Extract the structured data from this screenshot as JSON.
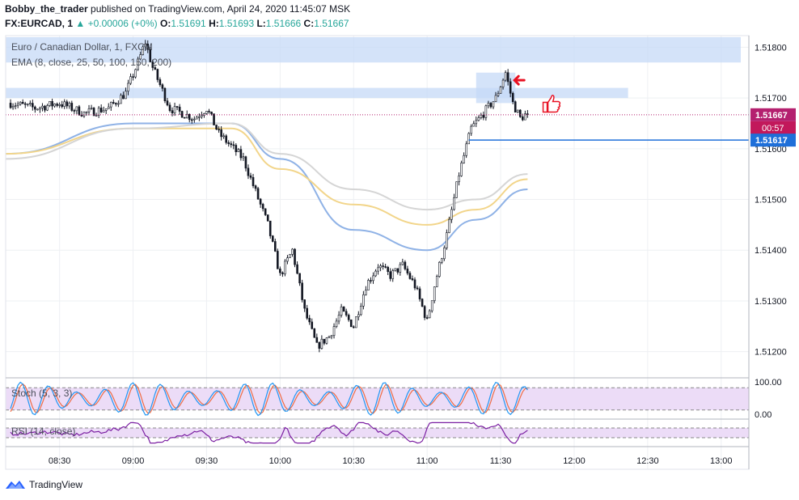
{
  "header": {
    "author": "Bobby_the_trader",
    "published": "published on TradingView.com, April 24, 2020 11:45:07 MSK",
    "symbol": "FX:EURCAD, 1",
    "change": "▲ +0.00006 (+0%)",
    "o_label": "O:",
    "o": "1.51691",
    "h_label": "H:",
    "h": "1.51693",
    "l_label": "L:",
    "l": "1.51666",
    "c_label": "C:",
    "c": "1.51667"
  },
  "legend": {
    "title": "Euro / Canadian Dollar, 1, FXCM",
    "ema": "EMA (8, close, 25, 50, 100, 150, 200)",
    "stoch": "Stoch (5, 3, 3)",
    "rsi": "RSI (14, close)"
  },
  "price_badges": {
    "last": "1.51667",
    "countdown": "00:57",
    "level": "1.51617"
  },
  "osc_scale": [
    "100.00",
    "0.00"
  ],
  "brand": "TradingView",
  "colors": {
    "up": "#26a69a",
    "badge_last": "#b4206f",
    "badge_countdown": "#c2185b",
    "level_line": "#1e6fd9",
    "zone": "#c5d9f7",
    "ema_blue": "#8fb2e6",
    "ema_yellow": "#f2d58a",
    "ema_gray": "#d5d5d5",
    "stoch_k": "#2196f3",
    "stoch_d": "#ef6c45",
    "rsi": "#7b1fa2",
    "osc_bg": "#ecdcf7"
  },
  "chart_data": {
    "type": "candlestick",
    "title": "Euro / Canadian Dollar, 1, FXCM",
    "ylim": [
      1.5115,
      1.5183
    ],
    "yticks": [
      "1.51800",
      "1.51700",
      "1.51600",
      "1.51500",
      "1.51400",
      "1.51300",
      "1.51200"
    ],
    "xticks": [
      "08:30",
      "09:00",
      "09:30",
      "10:00",
      "10:30",
      "11:00",
      "11:30",
      "12:00",
      "12:30",
      "13:00"
    ],
    "price_path": [
      [
        "08:10",
        1.5169
      ],
      [
        "08:20",
        1.5168
      ],
      [
        "08:30",
        1.5169
      ],
      [
        "08:40",
        1.5167
      ],
      [
        "08:50",
        1.5168
      ],
      [
        "08:57",
        1.5171
      ],
      [
        "09:02",
        1.5177
      ],
      [
        "09:05",
        1.5181
      ],
      [
        "09:08",
        1.5176
      ],
      [
        "09:15",
        1.5168
      ],
      [
        "09:25",
        1.5166
      ],
      [
        "09:30",
        1.5168
      ],
      [
        "09:35",
        1.5163
      ],
      [
        "09:45",
        1.5158
      ],
      [
        "09:55",
        1.5145
      ],
      [
        "10:00",
        1.5135
      ],
      [
        "10:05",
        1.514
      ],
      [
        "10:10",
        1.5128
      ],
      [
        "10:15",
        1.5121
      ],
      [
        "10:20",
        1.5123
      ],
      [
        "10:25",
        1.5128
      ],
      [
        "10:30",
        1.5125
      ],
      [
        "10:35",
        1.5133
      ],
      [
        "10:40",
        1.5137
      ],
      [
        "10:45",
        1.5135
      ],
      [
        "10:50",
        1.5137
      ],
      [
        "10:55",
        1.5133
      ],
      [
        "11:00",
        1.5126
      ],
      [
        "11:03",
        1.5133
      ],
      [
        "11:08",
        1.5143
      ],
      [
        "11:13",
        1.5155
      ],
      [
        "11:18",
        1.5164
      ],
      [
        "11:23",
        1.5167
      ],
      [
        "11:28",
        1.517
      ],
      [
        "11:32",
        1.5175
      ],
      [
        "11:35",
        1.5169
      ],
      [
        "11:38",
        1.5166
      ],
      [
        "11:41",
        1.5167
      ]
    ],
    "ema_series": [
      {
        "values": [
          [
            "08:08",
            1.5159
          ],
          [
            "09:00",
            1.5165
          ],
          [
            "09:40",
            1.5165
          ],
          [
            "10:00",
            1.5158
          ],
          [
            "10:30",
            1.5144
          ],
          [
            "11:00",
            1.514
          ],
          [
            "11:20",
            1.5146
          ],
          [
            "11:41",
            1.5152
          ]
        ]
      },
      {
        "values": [
          [
            "08:08",
            1.5159
          ],
          [
            "09:00",
            1.5164
          ],
          [
            "09:40",
            1.5164
          ],
          [
            "10:00",
            1.5156
          ],
          [
            "10:30",
            1.5149
          ],
          [
            "11:00",
            1.5145
          ],
          [
            "11:20",
            1.5148
          ],
          [
            "11:41",
            1.5154
          ]
        ]
      },
      {
        "values": [
          [
            "08:08",
            1.5158
          ],
          [
            "09:00",
            1.5164
          ],
          [
            "09:40",
            1.5165
          ],
          [
            "10:00",
            1.5159
          ],
          [
            "10:30",
            1.5152
          ],
          [
            "11:00",
            1.5148
          ],
          [
            "11:20",
            1.515
          ],
          [
            "11:41",
            1.5155
          ]
        ]
      }
    ],
    "zones": [
      {
        "t1": "08:08",
        "t2": "13:08",
        "p1": 1.5177,
        "p2": 1.5182
      },
      {
        "t1": "08:08",
        "t2": "12:22",
        "p1": 1.517,
        "p2": 1.5172
      },
      {
        "t1": "11:20",
        "t2": "11:36",
        "p1": 1.5169,
        "p2": 1.5175
      }
    ],
    "level_line": {
      "from": "11:17",
      "value": 1.51617
    },
    "last_price": 1.51667,
    "oscillators": [
      {
        "name": "Stoch (5, 3, 3)",
        "ylim": [
          0,
          100
        ]
      },
      {
        "name": "RSI (14, close)",
        "ylim": [
          0,
          100
        ],
        "bands": [
          30,
          70
        ]
      }
    ]
  }
}
